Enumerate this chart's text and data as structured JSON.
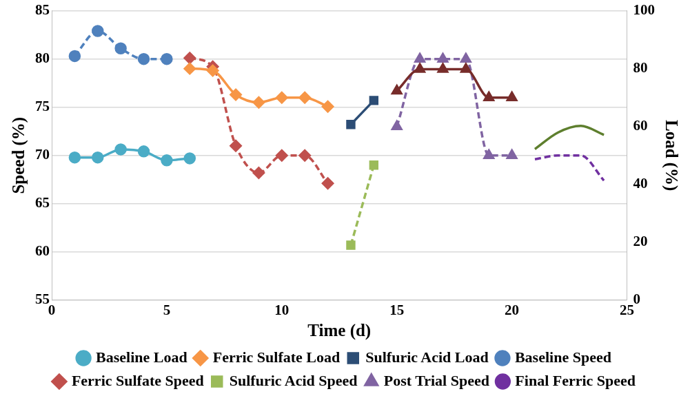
{
  "chart_data": {
    "type": "line",
    "xlabel": "Time (d)",
    "ylabel": "Speed (%)",
    "y2label": "Load (%)",
    "xlim": [
      0,
      25
    ],
    "xticks": [
      0,
      5,
      10,
      15,
      20,
      25
    ],
    "ylim": [
      55,
      85
    ],
    "yticks": [
      55,
      60,
      65,
      70,
      75,
      80,
      85
    ],
    "y2lim": [
      0,
      100
    ],
    "y2ticks": [
      0,
      20,
      40,
      60,
      80,
      100
    ],
    "grid": "y",
    "legend": "bottom",
    "series": [
      {
        "name": "Baseline Speed",
        "color": "#4f81bd",
        "marker": "circle",
        "line_style": "dashed",
        "x": [
          1,
          2,
          3,
          4,
          5
        ],
        "values": [
          80.3,
          82.9,
          81.1,
          80.0,
          80.0
        ]
      },
      {
        "name": "Ferric Sulfate Speed",
        "color": "#c0504d",
        "marker": "diamond",
        "line_style": "dashed",
        "x": [
          6,
          7,
          8,
          9,
          10,
          11,
          12
        ],
        "values": [
          80.1,
          79.2,
          71.0,
          68.2,
          70.0,
          70.0,
          67.1
        ]
      },
      {
        "name": "Sulfuric Acid Speed",
        "color": "#9bbb59",
        "marker": "square",
        "line_style": "dashed",
        "x": [
          13,
          14
        ],
        "values": [
          60.7,
          69.0
        ]
      },
      {
        "name": "Post Trial Speed",
        "color": "#8064a2",
        "marker": "triangle",
        "line_style": "dashed",
        "x": [
          15,
          16,
          17,
          18,
          19,
          20
        ],
        "values": [
          73.0,
          80.0,
          80.0,
          80.0,
          70.0,
          70.0
        ]
      },
      {
        "name": "Final Ferric Speed",
        "color": "#7030a0",
        "marker": "none",
        "line_style": "dashed",
        "x": [
          21,
          22,
          23,
          24
        ],
        "values": [
          69.6,
          70.0,
          70.0,
          67.4
        ]
      },
      {
        "name": "Baseline Load",
        "color": "#4bacc6",
        "marker": "circle",
        "line_style": "solid",
        "axis": "y2",
        "x": [
          1,
          2,
          3,
          4,
          5,
          6
        ],
        "values": [
          49.3,
          49.3,
          52.1,
          51.4,
          48.3,
          49.0
        ]
      },
      {
        "name": "Ferric Sulfate Load",
        "color": "#f79646",
        "marker": "diamond",
        "line_style": "solid",
        "axis": "y2",
        "x": [
          6,
          7,
          8,
          9,
          10,
          11,
          12
        ],
        "values": [
          80.0,
          79.3,
          71.0,
          68.3,
          70.0,
          70.0,
          66.9
        ]
      },
      {
        "name": "Sulfuric Acid Load",
        "color": "#2c4d75",
        "marker": "square",
        "line_style": "solid",
        "axis": "y2",
        "x": [
          13,
          14
        ],
        "values": [
          60.7,
          69.0
        ]
      },
      {
        "color": "#772c2a",
        "marker": "triangle",
        "line_style": "solid",
        "axis": "y2",
        "x": [
          15,
          16,
          17,
          18,
          19,
          20
        ],
        "values": [
          72.3,
          79.8,
          79.8,
          79.8,
          70.0,
          70.0
        ]
      },
      {
        "color": "#5e7f2e",
        "marker": "none",
        "line_style": "solid",
        "axis": "y2",
        "x": [
          21,
          22,
          23,
          24
        ],
        "values": [
          52.2,
          57.9,
          60.2,
          57.1
        ]
      }
    ]
  }
}
